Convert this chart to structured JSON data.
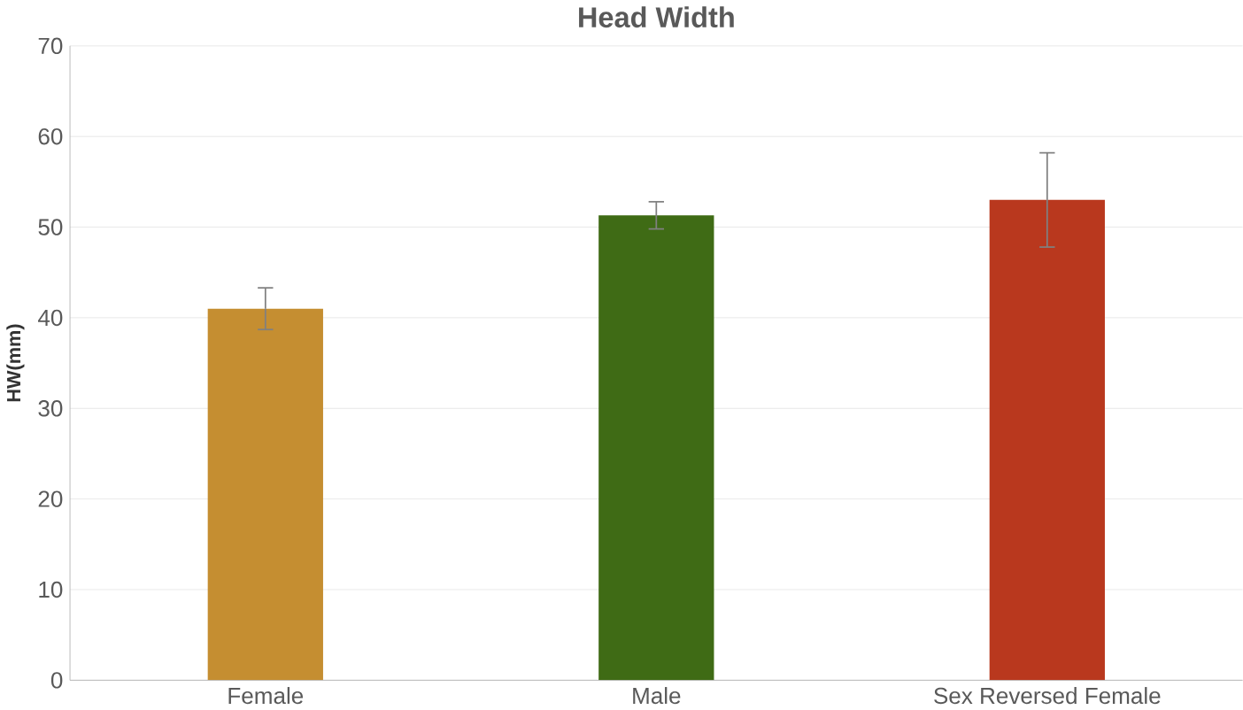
{
  "chart_data": {
    "type": "bar",
    "title": "Head Width",
    "ylabel": "HW(mm)",
    "categories": [
      "Female",
      "Male",
      "Sex Reversed Female"
    ],
    "values": [
      41,
      51.3,
      53
    ],
    "errors": [
      2.3,
      1.5,
      5.2
    ],
    "colors": [
      "#c58e31",
      "#3f6b15",
      "#b9381e"
    ],
    "ylim": [
      0,
      70
    ],
    "yticks": [
      0,
      10,
      20,
      30,
      40,
      50,
      60,
      70
    ],
    "grid": "y"
  }
}
